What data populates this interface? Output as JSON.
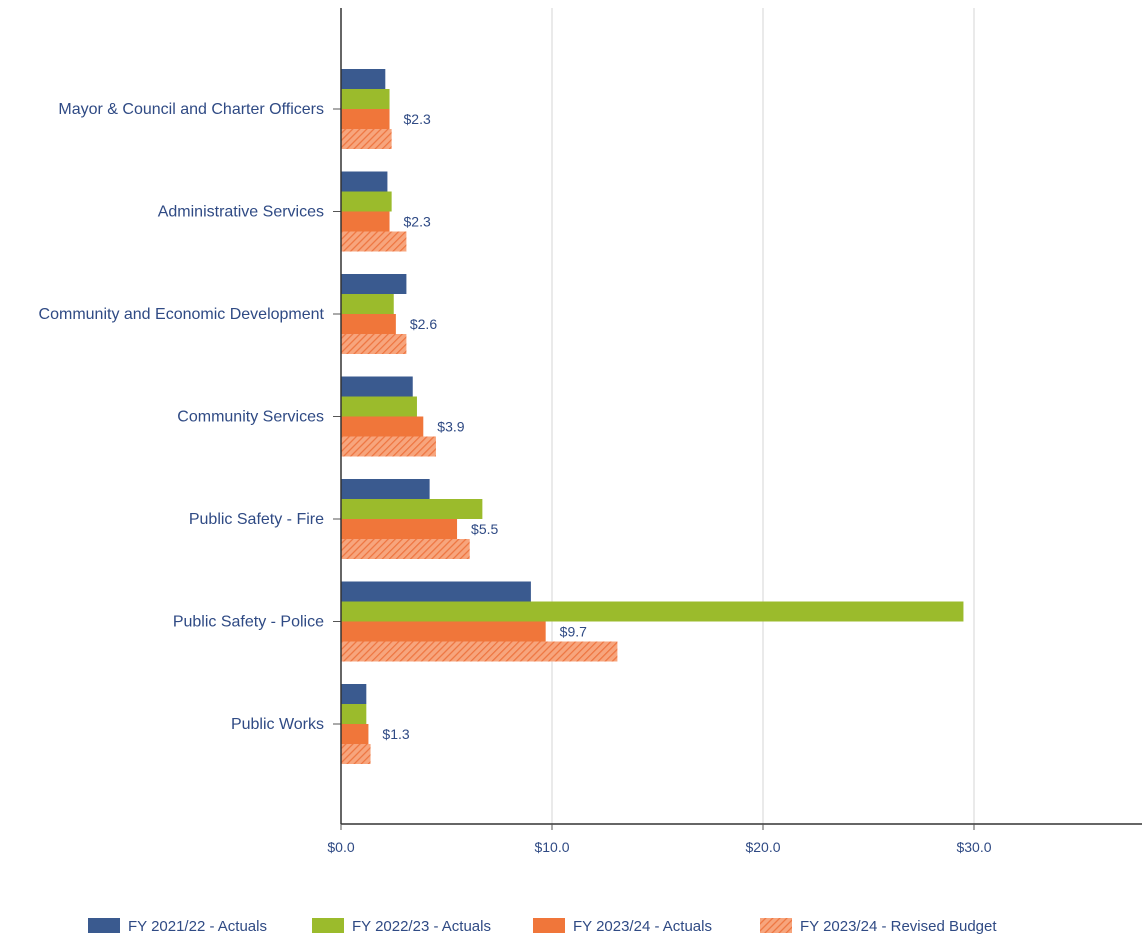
{
  "chart_data": {
    "type": "bar",
    "orientation": "horizontal",
    "categories": [
      "Mayor & Council and Charter Officers",
      "Administrative Services",
      "Community and Economic Development",
      "Community Services",
      "Public Safety - Fire",
      "Public Safety - Police",
      "Public Works"
    ],
    "series": [
      {
        "name": "FY 2021/22 - Actuals",
        "color": "#3a5a8f",
        "pattern": "solid",
        "values": [
          2.1,
          2.2,
          3.1,
          3.4,
          4.2,
          9.0,
          1.2
        ]
      },
      {
        "name": "FY 2022/23 - Actuals",
        "color": "#9bbb2c",
        "pattern": "solid",
        "values": [
          2.3,
          2.4,
          2.5,
          3.6,
          6.7,
          29.5,
          1.2
        ]
      },
      {
        "name": "FY 2023/24 - Actuals",
        "color": "#f0763a",
        "pattern": "solid",
        "values": [
          2.3,
          2.3,
          2.6,
          3.9,
          5.5,
          9.7,
          1.3
        ]
      },
      {
        "name": "FY 2023/24 - Revised Budget",
        "color": "#f0763a",
        "pattern": "hatched",
        "values": [
          2.4,
          3.1,
          3.1,
          4.5,
          6.1,
          13.1,
          1.4
        ]
      }
    ],
    "data_labels": [
      "$2.3",
      "$2.3",
      "$2.6",
      "$3.9",
      "$5.5",
      "$9.7",
      "$1.3"
    ],
    "data_label_series": 2,
    "xticks": [
      0,
      10,
      20,
      30
    ],
    "xtick_labels": [
      "$0.0",
      "$10.0",
      "$20.0",
      "$30.0"
    ],
    "xlim": [
      0,
      38
    ],
    "grid": true,
    "legend_position": "bottom",
    "title": "",
    "xlabel": "",
    "ylabel": ""
  }
}
